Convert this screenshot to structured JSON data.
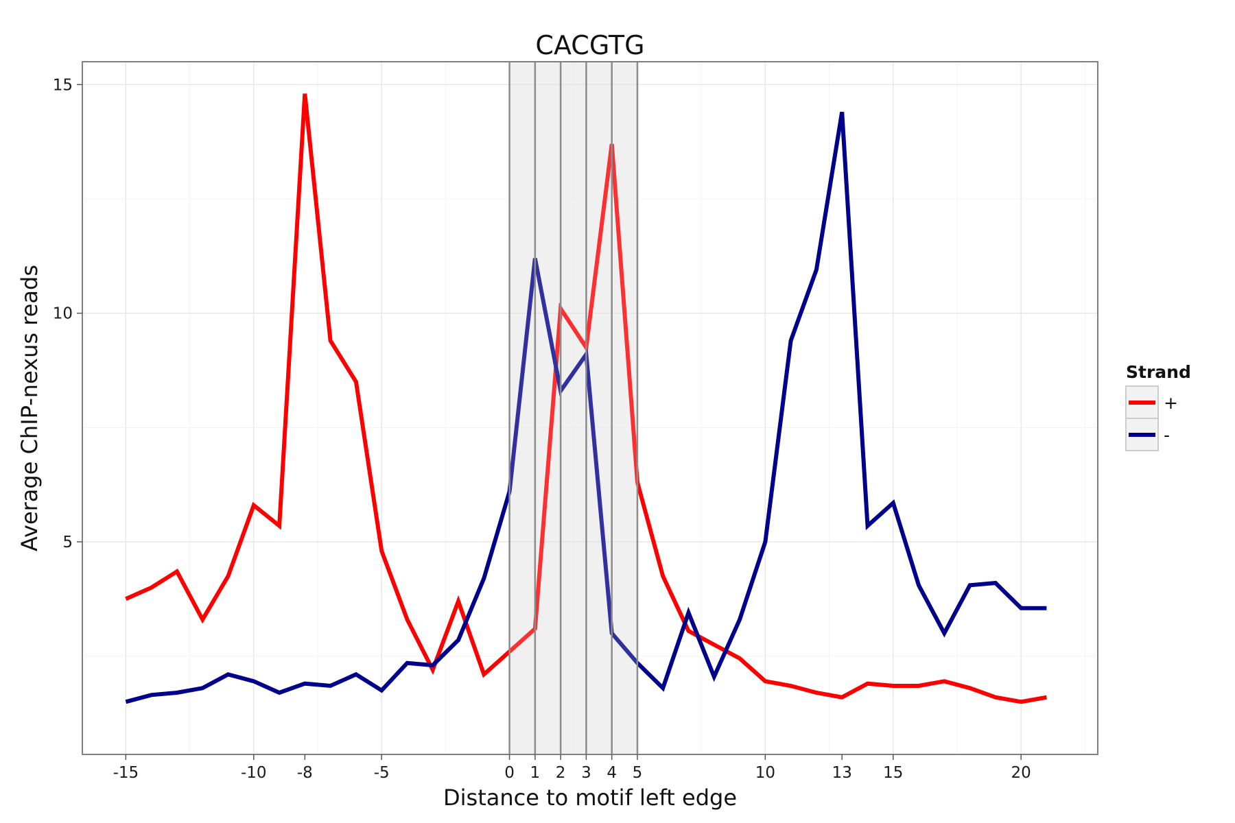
{
  "chart_data": {
    "type": "line",
    "title": "CACGTG",
    "xlabel": "Distance to motif left edge",
    "ylabel": "Average ChIP-nexus reads",
    "xlim": [
      -16.7,
      23
    ],
    "ylim": [
      0.35,
      15.5
    ],
    "x_ticks": [
      -15,
      -10,
      -8,
      -5,
      0,
      1,
      2,
      3,
      4,
      5,
      10,
      13,
      15,
      20
    ],
    "y_ticks": [
      5,
      10,
      15
    ],
    "grid": true,
    "highlight_region": [
      0,
      5
    ],
    "highlight_lines": [
      0,
      1,
      2,
      3,
      4,
      5
    ],
    "legend": {
      "title": "Strand",
      "position": "right",
      "entries": [
        {
          "label": "+",
          "color": "#ff0000"
        },
        {
          "label": "-",
          "color": "#00008b"
        }
      ]
    },
    "x": [
      -15,
      -14,
      -13,
      -12,
      -11,
      -10,
      -9,
      -8,
      -7,
      -6,
      -5,
      -4,
      -3,
      -2,
      -1,
      0,
      1,
      2,
      3,
      4,
      5,
      6,
      7,
      8,
      9,
      10,
      11,
      12,
      13,
      14,
      15,
      16,
      17,
      18,
      19,
      20,
      21
    ],
    "series": [
      {
        "name": "+",
        "color": "#ff0000",
        "values": [
          3.75,
          4.0,
          4.35,
          3.3,
          4.25,
          5.8,
          5.35,
          14.8,
          9.4,
          8.5,
          4.8,
          3.3,
          2.2,
          3.7,
          2.1,
          2.6,
          3.1,
          10.1,
          9.25,
          13.7,
          6.3,
          4.25,
          3.05,
          2.75,
          2.45,
          1.95,
          1.85,
          1.7,
          1.6,
          1.9,
          1.85,
          1.85,
          1.95,
          1.8,
          1.6,
          1.5,
          1.6
        ]
      },
      {
        "name": "-",
        "color": "#00008b",
        "values": [
          1.5,
          1.65,
          1.7,
          1.8,
          2.1,
          1.95,
          1.7,
          1.9,
          1.85,
          2.1,
          1.75,
          2.35,
          2.3,
          2.85,
          4.2,
          6.1,
          11.2,
          8.3,
          9.1,
          3.0,
          2.35,
          1.8,
          3.45,
          2.05,
          3.3,
          5.0,
          9.4,
          10.95,
          14.4,
          5.35,
          5.85,
          4.05,
          3.0,
          4.05,
          4.1,
          3.55,
          3.55
        ]
      }
    ]
  }
}
